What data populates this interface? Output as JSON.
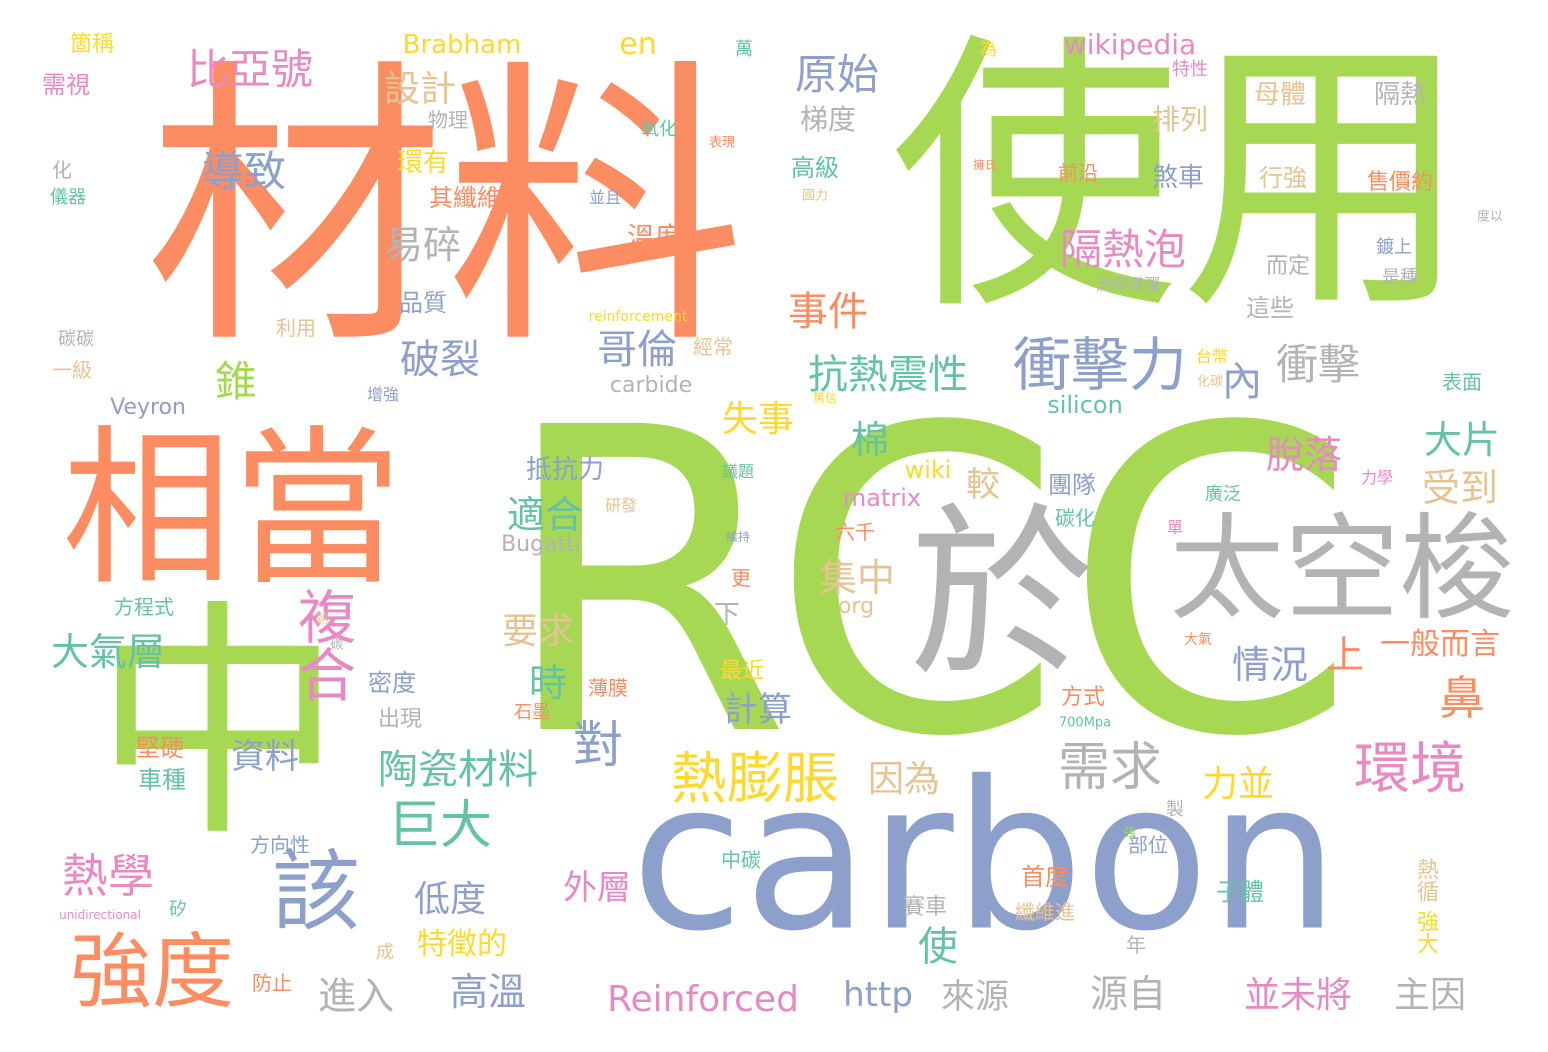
{
  "palette": {
    "green": "#a6d854",
    "orange": "#fc8d62",
    "blue": "#8da0cb",
    "gray": "#b3b3b3",
    "teal": "#66c2a5",
    "pink": "#e78ac3",
    "yellow": "#ffd92f",
    "tan": "#e5c494"
  },
  "words": [
    "RCC",
    "carbon",
    "材料",
    "使用",
    "中",
    "相當",
    "於",
    "太空梭",
    "複合",
    "該",
    "強度",
    "衝擊力",
    "熱膨脹",
    "環境",
    "需求",
    "巨大",
    "陶瓷材料",
    "熱學",
    "隔熱泡",
    "原始",
    "抗熱震性",
    "比亞號",
    "導致",
    "易碎",
    "破裂",
    "哥倫",
    "事件",
    "衝擊",
    "鼻",
    "對",
    "脫落",
    "受到",
    "大片",
    "集中",
    "適合",
    "大氣層",
    "時",
    "情況",
    "上",
    "一般而言",
    "力並",
    "因為",
    "要求",
    "計算",
    "資料",
    "低度",
    "外層",
    "特徵的",
    "高溫",
    "並未將",
    "主因",
    "源自",
    "來源",
    "進入",
    "Reinforced",
    "http",
    "使",
    "設計",
    "en",
    "Brabham",
    "wikipedia",
    "錐",
    "棉",
    "較",
    "失事",
    "內",
    "溫度",
    "梯度",
    "高級",
    "排列",
    "母體",
    "隔熱",
    "煞車",
    "行強",
    "售價約",
    "前沿",
    "其纖維",
    "環有",
    "品質",
    "利用",
    "經常",
    "carbide",
    "silicon",
    "matrix",
    "wiki",
    "Bugatti",
    "Veyron",
    "抵抗力",
    "團隊",
    "碳化",
    "廣泛",
    "org",
    "六千",
    "方程式",
    "下",
    "更",
    "最近",
    "方式",
    "密度",
    "出現",
    "薄膜",
    "石墨",
    "堅硬",
    "車種",
    "方向性",
    "中碳",
    "首度",
    "纖維進",
    "子體",
    "熱循",
    "強大",
    "賽車",
    "年",
    "防止",
    "成",
    "矽",
    "unidirectional",
    "部位",
    "製",
    "強",
    "大氣",
    "700Mpa",
    "台幣",
    "化碳",
    "表面",
    "力學",
    "單",
    "箇稱",
    "需視",
    "化",
    "儀器",
    "物理",
    "氧化",
    "表現",
    "並且",
    "國力",
    "擁氏",
    "萬",
    "為",
    "特性",
    "度以",
    "鍍上",
    "是種",
    "而定",
    "這些",
    "洲際導彈",
    "一級",
    "碳碳",
    "增強",
    "reinforcement",
    "篤信",
    "議題",
    "研發",
    "維持",
    "熱",
    "碳"
  ]
}
